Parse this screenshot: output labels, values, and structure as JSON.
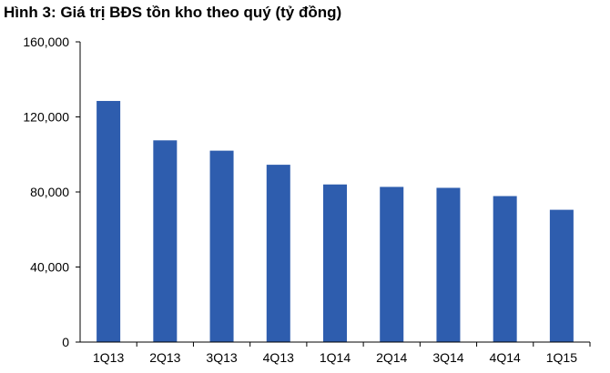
{
  "chart_data": {
    "type": "bar",
    "title": "Hình 3: Giá trị BĐS tồn kho theo quý (tỷ đồng)",
    "xlabel": "",
    "ylabel": "",
    "categories": [
      "1Q13",
      "2Q13",
      "3Q13",
      "4Q13",
      "1Q14",
      "2Q14",
      "3Q14",
      "4Q14",
      "1Q15"
    ],
    "values": [
      128500,
      107500,
      102000,
      94500,
      84000,
      82700,
      82200,
      77800,
      70500
    ],
    "ylim": [
      0,
      160000
    ],
    "yticks": [
      0,
      40000,
      80000,
      120000,
      160000
    ],
    "ytick_labels": [
      "0",
      "40,000",
      "80,000",
      "120,000",
      "160,000"
    ],
    "grid": false,
    "legend": "none",
    "colors": {
      "bar": "#2E5DAE",
      "axis": "#000000",
      "text": "#000000"
    }
  }
}
